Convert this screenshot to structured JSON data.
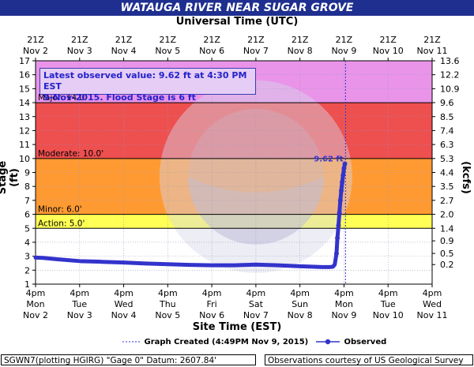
{
  "header": {
    "title": "WATAUGA RIVER NEAR SUGAR GROVE",
    "top_axis_title": "Universal Time (UTC)",
    "bottom_axis_title": "Site Time (EST)",
    "left_axis_title": "Stage (ft)",
    "right_axis_title": "Flow (kcfs)"
  },
  "info_box": {
    "line1": "Latest observed value: 9.62 ft at 4:30 PM EST",
    "line2": "9-Nov-2015.  Flood Stage is 6 ft"
  },
  "legend": {
    "created": "Graph Created (4:49PM Nov 9, 2015)",
    "observed": "Observed"
  },
  "footer": {
    "left": "SGWN7(plotting HGIRG) \"Gage 0\" Datum: 2607.84'",
    "right": "Observations courtesy of US Geological Survey"
  },
  "colors": {
    "title_bar": "#1f2f8f",
    "major": "#e994e9",
    "moderate": "#ee4f4f",
    "minor": "#ff9a33",
    "action": "#ffff55",
    "normal": "#ffffff",
    "observed": "#3333cc",
    "grid": "#9999bb"
  },
  "chart_data": {
    "type": "line",
    "title": "WATAUGA RIVER NEAR SUGAR GROVE",
    "xlabel": "Site Time (EST)",
    "ylabel": "Stage (ft)",
    "y2label": "Flow (kcfs)",
    "ylim": [
      1,
      17
    ],
    "yticks": [
      1,
      2,
      3,
      4,
      5,
      6,
      7,
      8,
      9,
      10,
      11,
      12,
      13,
      14,
      15,
      16,
      17
    ],
    "y2_ticks": [
      {
        "stage": 2.4,
        "label": "0.2"
      },
      {
        "stage": 3.2,
        "label": "0.5"
      },
      {
        "stage": 4.1,
        "label": "0.9"
      },
      {
        "stage": 5.0,
        "label": "1.4"
      },
      {
        "stage": 6.0,
        "label": "2.0"
      },
      {
        "stage": 7.0,
        "label": "2.7"
      },
      {
        "stage": 8.0,
        "label": "3.5"
      },
      {
        "stage": 9.0,
        "label": "4.4"
      },
      {
        "stage": 10.0,
        "label": "5.3"
      },
      {
        "stage": 11.0,
        "label": "6.3"
      },
      {
        "stage": 12.0,
        "label": "7.4"
      },
      {
        "stage": 13.0,
        "label": "8.5"
      },
      {
        "stage": 14.0,
        "label": "9.6"
      },
      {
        "stage": 15.0,
        "label": "10.9"
      },
      {
        "stage": 16.0,
        "label": "12.2"
      },
      {
        "stage": 17.0,
        "label": "13.6"
      }
    ],
    "x_bottom_ticks": [
      {
        "l1": "4pm",
        "l2": "Mon",
        "l3": "Nov 2"
      },
      {
        "l1": "4pm",
        "l2": "Tue",
        "l3": "Nov 3"
      },
      {
        "l1": "4pm",
        "l2": "Wed",
        "l3": "Nov 4"
      },
      {
        "l1": "4pm",
        "l2": "Thu",
        "l3": "Nov 5"
      },
      {
        "l1": "4pm",
        "l2": "Fri",
        "l3": "Nov 6"
      },
      {
        "l1": "4pm",
        "l2": "Sat",
        "l3": "Nov 7"
      },
      {
        "l1": "4pm",
        "l2": "Sun",
        "l3": "Nov 8"
      },
      {
        "l1": "4pm",
        "l2": "Mon",
        "l3": "Nov 9"
      },
      {
        "l1": "4pm",
        "l2": "Tue",
        "l3": "Nov 10"
      },
      {
        "l1": "4pm",
        "l2": "Wed",
        "l3": "Nov 11"
      }
    ],
    "x_top_ticks": [
      {
        "l1": "21Z",
        "l2": "Nov 2"
      },
      {
        "l1": "21Z",
        "l2": "Nov 3"
      },
      {
        "l1": "21Z",
        "l2": "Nov 4"
      },
      {
        "l1": "21Z",
        "l2": "Nov 5"
      },
      {
        "l1": "21Z",
        "l2": "Nov 6"
      },
      {
        "l1": "21Z",
        "l2": "Nov 7"
      },
      {
        "l1": "21Z",
        "l2": "Nov 8"
      },
      {
        "l1": "21Z",
        "l2": "Nov 9"
      },
      {
        "l1": "21Z",
        "l2": "Nov 10"
      },
      {
        "l1": "21Z",
        "l2": "Nov 11"
      }
    ],
    "flood_categories": [
      {
        "name": "Major",
        "label": "Major: 14.0'",
        "from": 14.0,
        "to": 17.0,
        "color": "#e994e9"
      },
      {
        "name": "Moderate",
        "label": "Moderate: 10.0'",
        "from": 10.0,
        "to": 14.0,
        "color": "#ee4f4f"
      },
      {
        "name": "Minor",
        "label": "Minor: 6.0'",
        "from": 6.0,
        "to": 10.0,
        "color": "#ff9a33"
      },
      {
        "name": "Action",
        "label": "Action: 5.0'",
        "from": 5.0,
        "to": 6.0,
        "color": "#ffff55"
      }
    ],
    "latest_label": "9.62 ft",
    "graph_created_x": "Nov 9 4:49PM",
    "series": [
      {
        "name": "Observed",
        "color": "#3333cc",
        "x": [
          "Nov 2 4pm",
          "Nov 2 8pm",
          "Nov 3 4am",
          "Nov 3 4pm",
          "Nov 4 4am",
          "Nov 4 4pm",
          "Nov 5 4am",
          "Nov 5 4pm",
          "Nov 6 4am",
          "Nov 6 4pm",
          "Nov 7 4am",
          "Nov 7 4pm",
          "Nov 8 4am",
          "Nov 8 4pm",
          "Nov 9 4am",
          "Nov 9 8am",
          "Nov 9 10am",
          "Nov 9 11am",
          "Nov 9 12pm",
          "Nov 9 12:30pm",
          "Nov 9 1pm",
          "Nov 9 1:30pm",
          "Nov 9 2pm",
          "Nov 9 2:30pm",
          "Nov 9 3pm",
          "Nov 9 3:30pm",
          "Nov 9 4pm",
          "Nov 9 4:30pm"
        ],
        "x_days": [
          0,
          0.17,
          0.5,
          1,
          1.5,
          2,
          2.5,
          3,
          3.5,
          4,
          4.5,
          5,
          5.5,
          6,
          6.5,
          6.67,
          6.75,
          6.79,
          6.83,
          6.85,
          6.875,
          6.896,
          6.917,
          6.938,
          6.958,
          6.979,
          7,
          7.02
        ],
        "y": [
          2.9,
          2.88,
          2.78,
          2.65,
          2.6,
          2.55,
          2.48,
          2.43,
          2.38,
          2.35,
          2.35,
          2.4,
          2.35,
          2.28,
          2.22,
          2.22,
          2.25,
          2.4,
          3.2,
          4.3,
          5.2,
          6.1,
          7.0,
          7.7,
          8.3,
          8.8,
          9.3,
          9.62
        ]
      }
    ]
  }
}
